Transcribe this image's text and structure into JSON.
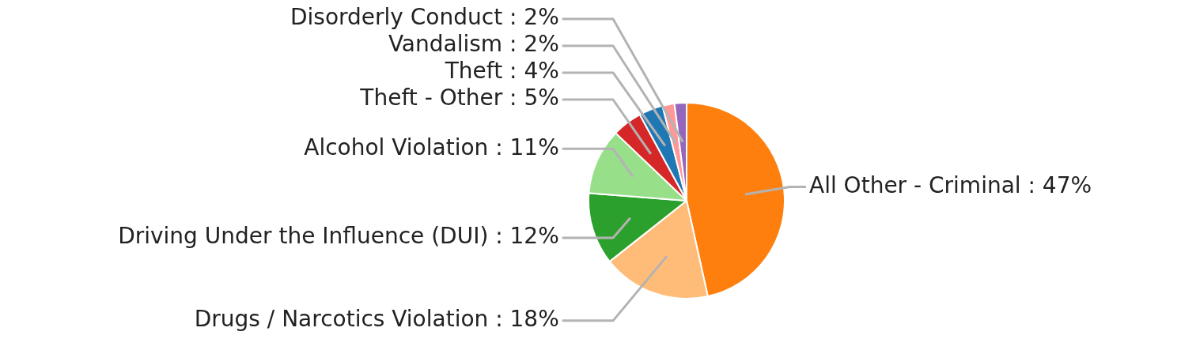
{
  "chart_data": {
    "type": "pie",
    "categories": [
      "All Other - Criminal",
      "Drugs / Narcotics Violation",
      "Driving Under the Influence (DUI)",
      "Alcohol Violation",
      "Theft - Other",
      "Theft",
      "Vandalism",
      "Disorderly Conduct"
    ],
    "values": [
      47,
      18,
      12,
      11,
      5,
      4,
      2,
      2
    ],
    "value_labels": [
      "47%",
      "18%",
      "12%",
      "11%",
      "5%",
      "4%",
      "2%",
      "2%"
    ],
    "colors": [
      "#ff7f0e",
      "#ffbb78",
      "#2ca02c",
      "#98df8a",
      "#d62728",
      "#1f77b4",
      "#ff9896",
      "#9467bd"
    ],
    "legend": false
  }
}
